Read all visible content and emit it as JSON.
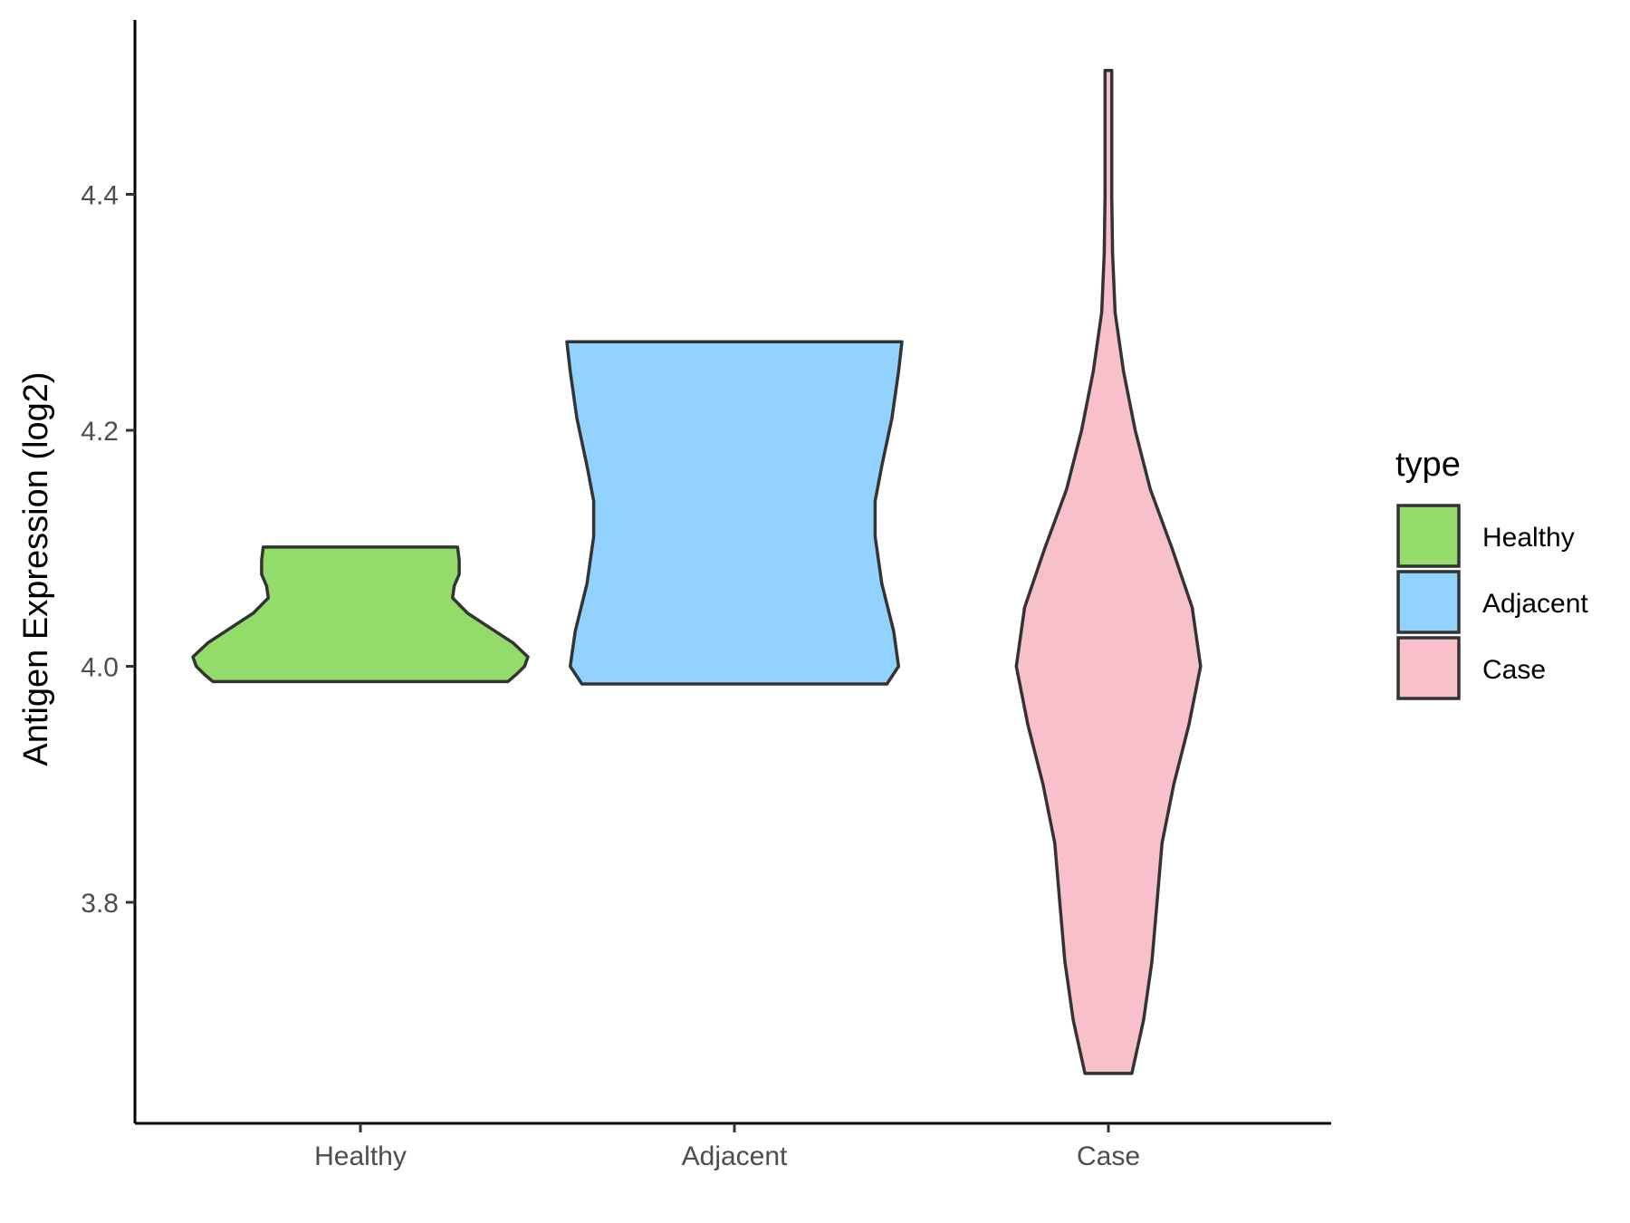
{
  "chart_data": {
    "type": "violin",
    "xlabel": "",
    "ylabel": "Antigen Expression (log2)",
    "ylim": [
      3.62,
      4.55
    ],
    "yticks": [
      3.8,
      4.0,
      4.2,
      4.4
    ],
    "ytick_labels": [
      "3.8",
      "4.0",
      "4.2",
      "4.4"
    ],
    "categories": [
      "Healthy",
      "Adjacent",
      "Case"
    ],
    "grid": false,
    "legend": {
      "title": "type",
      "position": "right",
      "entries": [
        {
          "label": "Healthy",
          "color": "#93dc6a"
        },
        {
          "label": "Adjacent",
          "color": "#92d2fe"
        },
        {
          "label": "Case",
          "color": "#f7c0cb"
        }
      ]
    },
    "series": [
      {
        "category": "Healthy",
        "color": "#93dc6a",
        "min": 3.987,
        "max": 4.101,
        "profile": [
          [
            3.987,
            0.88
          ],
          [
            3.993,
            0.93
          ],
          [
            4.0,
            0.98
          ],
          [
            4.008,
            1.0
          ],
          [
            4.02,
            0.91
          ],
          [
            4.032,
            0.78
          ],
          [
            4.045,
            0.64
          ],
          [
            4.058,
            0.55
          ],
          [
            4.068,
            0.56
          ],
          [
            4.078,
            0.59
          ],
          [
            4.09,
            0.59
          ],
          [
            4.101,
            0.58
          ]
        ]
      },
      {
        "category": "Adjacent",
        "color": "#92d2fe",
        "min": 3.985,
        "max": 4.275,
        "profile": [
          [
            3.985,
            0.91
          ],
          [
            4.0,
            0.98
          ],
          [
            4.03,
            0.95
          ],
          [
            4.07,
            0.88
          ],
          [
            4.11,
            0.84
          ],
          [
            4.14,
            0.84
          ],
          [
            4.17,
            0.88
          ],
          [
            4.21,
            0.94
          ],
          [
            4.25,
            0.98
          ],
          [
            4.275,
            1.0
          ]
        ]
      },
      {
        "category": "Case",
        "color": "#f7c0cb",
        "min": 3.655,
        "max": 4.505,
        "profile": [
          [
            3.655,
            0.14
          ],
          [
            3.7,
            0.21
          ],
          [
            3.75,
            0.26
          ],
          [
            3.8,
            0.29
          ],
          [
            3.85,
            0.32
          ],
          [
            3.9,
            0.39
          ],
          [
            3.95,
            0.48
          ],
          [
            4.0,
            0.55
          ],
          [
            4.05,
            0.5
          ],
          [
            4.1,
            0.38
          ],
          [
            4.15,
            0.25
          ],
          [
            4.2,
            0.16
          ],
          [
            4.25,
            0.09
          ],
          [
            4.3,
            0.04
          ],
          [
            4.35,
            0.025
          ],
          [
            4.4,
            0.02
          ],
          [
            4.45,
            0.02
          ],
          [
            4.505,
            0.02
          ]
        ]
      }
    ]
  }
}
